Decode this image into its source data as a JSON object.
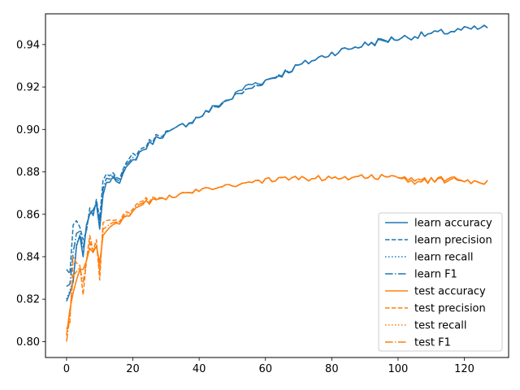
{
  "chart_data": {
    "type": "line",
    "title": "",
    "xlabel": "",
    "ylabel": "",
    "xlim": [
      -6.35,
      133.35
    ],
    "ylim": [
      0.7925,
      0.9545
    ],
    "xticks": [
      0,
      20,
      40,
      60,
      80,
      100,
      120
    ],
    "xtick_labels": [
      "0",
      "20",
      "40",
      "60",
      "80",
      "100",
      "120"
    ],
    "yticks": [
      0.8,
      0.82,
      0.84,
      0.86,
      0.88,
      0.9,
      0.92,
      0.94
    ],
    "ytick_labels": [
      "0.80",
      "0.82",
      "0.84",
      "0.86",
      "0.88",
      "0.90",
      "0.92",
      "0.94"
    ],
    "grid": false,
    "legend_position": "lower-right",
    "colors": {
      "learn": "#1f77b4",
      "test": "#ff7f0e"
    },
    "series": [
      {
        "name": "learn accuracy",
        "color": "#1f77b4",
        "style": "solid",
        "anchors": [
          [
            0,
            0.819
          ],
          [
            1,
            0.823
          ],
          [
            2,
            0.828
          ],
          [
            3,
            0.845
          ],
          [
            4,
            0.85
          ],
          [
            5,
            0.84
          ],
          [
            6,
            0.855
          ],
          [
            7,
            0.86
          ],
          [
            8,
            0.862
          ],
          [
            9,
            0.865
          ],
          [
            10,
            0.853
          ],
          [
            11,
            0.869
          ],
          [
            12,
            0.875
          ],
          [
            14,
            0.878
          ],
          [
            16,
            0.876
          ],
          [
            18,
            0.881
          ],
          [
            20,
            0.885
          ],
          [
            22,
            0.889
          ],
          [
            25,
            0.893
          ],
          [
            28,
            0.897
          ],
          [
            32,
            0.899
          ],
          [
            35,
            0.902
          ],
          [
            38,
            0.904
          ],
          [
            40,
            0.906
          ],
          [
            43,
            0.909
          ],
          [
            46,
            0.912
          ],
          [
            50,
            0.915
          ],
          [
            52,
            0.918
          ],
          [
            55,
            0.921
          ],
          [
            60,
            0.923
          ],
          [
            65,
            0.926
          ],
          [
            70,
            0.93
          ],
          [
            75,
            0.933
          ],
          [
            80,
            0.936
          ],
          [
            85,
            0.938
          ],
          [
            90,
            0.94
          ],
          [
            95,
            0.942
          ],
          [
            100,
            0.943
          ],
          [
            105,
            0.944
          ],
          [
            110,
            0.945
          ],
          [
            115,
            0.946
          ],
          [
            120,
            0.947
          ],
          [
            127,
            0.948
          ]
        ]
      },
      {
        "name": "learn precision",
        "color": "#1f77b4",
        "style": "dashed",
        "anchors": [
          [
            0,
            0.834
          ],
          [
            1,
            0.832
          ],
          [
            2,
            0.855
          ],
          [
            3,
            0.857
          ],
          [
            4,
            0.854
          ],
          [
            5,
            0.848
          ],
          [
            6,
            0.852
          ],
          [
            7,
            0.863
          ],
          [
            8,
            0.859
          ],
          [
            9,
            0.867
          ],
          [
            10,
            0.858
          ],
          [
            11,
            0.876
          ],
          [
            12,
            0.879
          ],
          [
            14,
            0.88
          ],
          [
            16,
            0.878
          ],
          [
            18,
            0.883
          ],
          [
            20,
            0.888
          ],
          [
            22,
            0.89
          ],
          [
            25,
            0.894
          ],
          [
            28,
            0.898
          ],
          [
            32,
            0.899
          ],
          [
            35,
            0.902
          ],
          [
            40,
            0.906
          ],
          [
            50,
            0.915
          ],
          [
            60,
            0.923
          ],
          [
            70,
            0.93
          ],
          [
            80,
            0.936
          ],
          [
            90,
            0.94
          ],
          [
            100,
            0.943
          ],
          [
            110,
            0.945
          ],
          [
            120,
            0.947
          ],
          [
            127,
            0.948
          ]
        ]
      },
      {
        "name": "learn recall",
        "color": "#1f77b4",
        "style": "dotted",
        "anchors": [
          [
            0,
            0.82
          ],
          [
            1,
            0.824
          ],
          [
            2,
            0.829
          ],
          [
            3,
            0.846
          ],
          [
            4,
            0.85
          ],
          [
            5,
            0.841
          ],
          [
            6,
            0.855
          ],
          [
            7,
            0.86
          ],
          [
            8,
            0.862
          ],
          [
            9,
            0.865
          ],
          [
            10,
            0.854
          ],
          [
            11,
            0.869
          ],
          [
            12,
            0.875
          ],
          [
            14,
            0.878
          ],
          [
            16,
            0.876
          ],
          [
            18,
            0.881
          ],
          [
            20,
            0.885
          ],
          [
            22,
            0.889
          ],
          [
            25,
            0.893
          ],
          [
            28,
            0.897
          ],
          [
            32,
            0.899
          ],
          [
            35,
            0.902
          ],
          [
            40,
            0.906
          ],
          [
            50,
            0.915
          ],
          [
            60,
            0.923
          ],
          [
            70,
            0.93
          ],
          [
            80,
            0.936
          ],
          [
            90,
            0.94
          ],
          [
            100,
            0.943
          ],
          [
            110,
            0.945
          ],
          [
            120,
            0.947
          ],
          [
            127,
            0.948
          ]
        ]
      },
      {
        "name": "learn F1",
        "color": "#1f77b4",
        "style": "dashdot",
        "anchors": [
          [
            0,
            0.826
          ],
          [
            1,
            0.827
          ],
          [
            2,
            0.842
          ],
          [
            3,
            0.851
          ],
          [
            4,
            0.852
          ],
          [
            5,
            0.844
          ],
          [
            6,
            0.853
          ],
          [
            7,
            0.861
          ],
          [
            8,
            0.86
          ],
          [
            9,
            0.866
          ],
          [
            10,
            0.856
          ],
          [
            11,
            0.872
          ],
          [
            12,
            0.877
          ],
          [
            14,
            0.879
          ],
          [
            16,
            0.877
          ],
          [
            18,
            0.882
          ],
          [
            20,
            0.886
          ],
          [
            22,
            0.889
          ],
          [
            25,
            0.893
          ],
          [
            28,
            0.897
          ],
          [
            32,
            0.899
          ],
          [
            35,
            0.902
          ],
          [
            40,
            0.906
          ],
          [
            50,
            0.915
          ],
          [
            60,
            0.923
          ],
          [
            70,
            0.93
          ],
          [
            80,
            0.936
          ],
          [
            90,
            0.94
          ],
          [
            100,
            0.943
          ],
          [
            110,
            0.945
          ],
          [
            120,
            0.947
          ],
          [
            127,
            0.948
          ]
        ]
      },
      {
        "name": "test accuracy",
        "color": "#ff7f0e",
        "style": "solid",
        "anchors": [
          [
            0,
            0.803
          ],
          [
            1,
            0.815
          ],
          [
            2,
            0.823
          ],
          [
            3,
            0.829
          ],
          [
            4,
            0.834
          ],
          [
            5,
            0.834
          ],
          [
            6,
            0.838
          ],
          [
            7,
            0.844
          ],
          [
            8,
            0.842
          ],
          [
            9,
            0.845
          ],
          [
            10,
            0.837
          ],
          [
            11,
            0.85
          ],
          [
            12,
            0.852
          ],
          [
            14,
            0.854
          ],
          [
            16,
            0.856
          ],
          [
            18,
            0.858
          ],
          [
            20,
            0.861
          ],
          [
            22,
            0.864
          ],
          [
            25,
            0.866
          ],
          [
            30,
            0.868
          ],
          [
            35,
            0.869
          ],
          [
            38,
            0.871
          ],
          [
            40,
            0.872
          ],
          [
            45,
            0.873
          ],
          [
            50,
            0.874
          ],
          [
            55,
            0.875
          ],
          [
            60,
            0.876
          ],
          [
            70,
            0.877
          ],
          [
            80,
            0.877
          ],
          [
            90,
            0.878
          ],
          [
            100,
            0.877
          ],
          [
            105,
            0.875
          ],
          [
            110,
            0.876
          ],
          [
            115,
            0.877
          ],
          [
            120,
            0.876
          ],
          [
            127,
            0.875
          ]
        ]
      },
      {
        "name": "test precision",
        "color": "#ff7f0e",
        "style": "dashed",
        "anchors": [
          [
            0,
            0.806
          ],
          [
            1,
            0.809
          ],
          [
            2,
            0.84
          ],
          [
            3,
            0.837
          ],
          [
            4,
            0.836
          ],
          [
            5,
            0.822
          ],
          [
            6,
            0.838
          ],
          [
            7,
            0.85
          ],
          [
            8,
            0.843
          ],
          [
            9,
            0.848
          ],
          [
            10,
            0.829
          ],
          [
            11,
            0.856
          ],
          [
            12,
            0.857
          ],
          [
            14,
            0.856
          ],
          [
            16,
            0.857
          ],
          [
            18,
            0.86
          ],
          [
            20,
            0.862
          ],
          [
            22,
            0.866
          ],
          [
            25,
            0.867
          ],
          [
            30,
            0.868
          ],
          [
            35,
            0.869
          ],
          [
            40,
            0.872
          ],
          [
            50,
            0.874
          ],
          [
            60,
            0.876
          ],
          [
            70,
            0.877
          ],
          [
            80,
            0.877
          ],
          [
            90,
            0.878
          ],
          [
            100,
            0.877
          ],
          [
            110,
            0.876
          ],
          [
            120,
            0.876
          ],
          [
            127,
            0.875
          ]
        ]
      },
      {
        "name": "test recall",
        "color": "#ff7f0e",
        "style": "dotted",
        "anchors": [
          [
            0,
            0.803
          ],
          [
            1,
            0.815
          ],
          [
            2,
            0.823
          ],
          [
            3,
            0.829
          ],
          [
            4,
            0.834
          ],
          [
            5,
            0.834
          ],
          [
            6,
            0.838
          ],
          [
            7,
            0.844
          ],
          [
            8,
            0.842
          ],
          [
            9,
            0.845
          ],
          [
            10,
            0.837
          ],
          [
            11,
            0.85
          ],
          [
            12,
            0.852
          ],
          [
            14,
            0.854
          ],
          [
            16,
            0.856
          ],
          [
            18,
            0.858
          ],
          [
            20,
            0.861
          ],
          [
            22,
            0.864
          ],
          [
            25,
            0.866
          ],
          [
            30,
            0.868
          ],
          [
            35,
            0.869
          ],
          [
            40,
            0.872
          ],
          [
            50,
            0.874
          ],
          [
            60,
            0.876
          ],
          [
            70,
            0.877
          ],
          [
            80,
            0.877
          ],
          [
            90,
            0.878
          ],
          [
            100,
            0.877
          ],
          [
            110,
            0.876
          ],
          [
            120,
            0.876
          ],
          [
            127,
            0.875
          ]
        ]
      },
      {
        "name": "test F1",
        "color": "#ff7f0e",
        "style": "dashdot",
        "anchors": [
          [
            0,
            0.8
          ],
          [
            1,
            0.812
          ],
          [
            2,
            0.831
          ],
          [
            3,
            0.833
          ],
          [
            4,
            0.835
          ],
          [
            5,
            0.828
          ],
          [
            6,
            0.838
          ],
          [
            7,
            0.847
          ],
          [
            8,
            0.842
          ],
          [
            9,
            0.846
          ],
          [
            10,
            0.833
          ],
          [
            11,
            0.853
          ],
          [
            12,
            0.854
          ],
          [
            14,
            0.855
          ],
          [
            16,
            0.856
          ],
          [
            18,
            0.859
          ],
          [
            20,
            0.861
          ],
          [
            22,
            0.865
          ],
          [
            25,
            0.866
          ],
          [
            30,
            0.868
          ],
          [
            35,
            0.869
          ],
          [
            40,
            0.872
          ],
          [
            50,
            0.874
          ],
          [
            60,
            0.876
          ],
          [
            70,
            0.877
          ],
          [
            80,
            0.877
          ],
          [
            90,
            0.878
          ],
          [
            100,
            0.877
          ],
          [
            110,
            0.876
          ],
          [
            120,
            0.876
          ],
          [
            127,
            0.875
          ]
        ]
      }
    ]
  }
}
